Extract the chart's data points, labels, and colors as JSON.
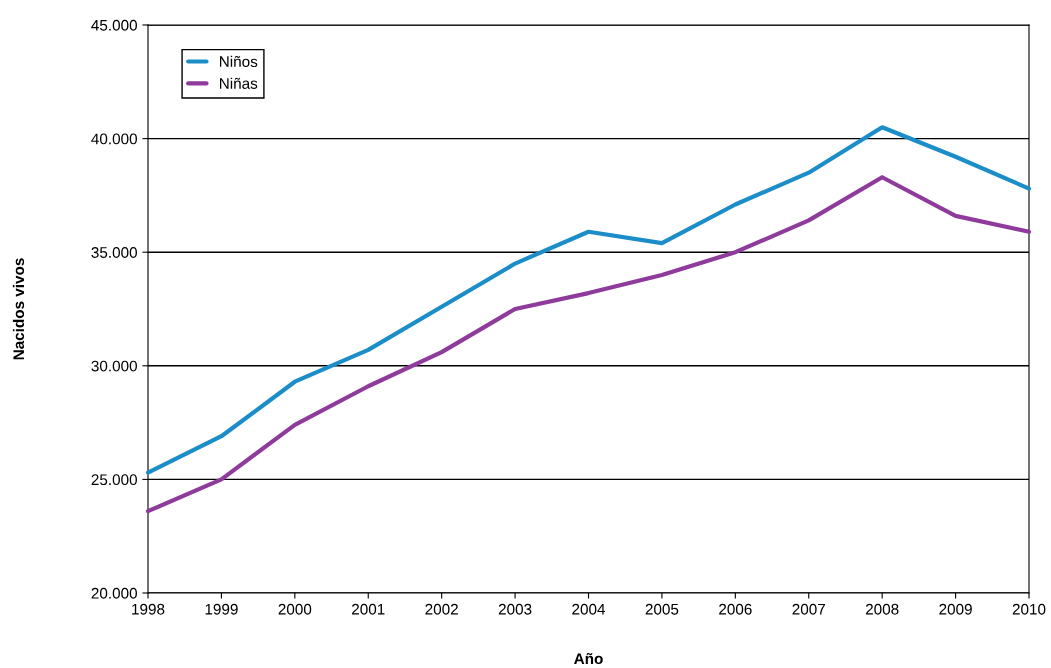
{
  "chart_data": {
    "type": "line",
    "xlabel": "Año",
    "ylabel": "Nacidos vivos",
    "x": [
      1998,
      1999,
      2000,
      2001,
      2002,
      2003,
      2004,
      2005,
      2006,
      2007,
      2008,
      2009,
      2010
    ],
    "series": [
      {
        "name": "Niños",
        "color": "#1b8dc8",
        "values": [
          25300,
          26900,
          29300,
          30700,
          32600,
          34500,
          35900,
          35400,
          37100,
          38500,
          40500,
          39200,
          37800
        ]
      },
      {
        "name": "Niñas",
        "color": "#8e3b9c",
        "values": [
          23600,
          25000,
          27400,
          29100,
          30600,
          32500,
          33200,
          34000,
          35000,
          36400,
          38300,
          36600,
          35900
        ]
      }
    ],
    "xlim": [
      1998,
      2010
    ],
    "xticks": [
      1998,
      1999,
      2000,
      2001,
      2002,
      2003,
      2004,
      2005,
      2006,
      2007,
      2008,
      2009,
      2010
    ],
    "ylim": [
      20000,
      45000
    ],
    "yticks": [
      {
        "value": 20000,
        "label": "20.000"
      },
      {
        "value": 25000,
        "label": "25.000"
      },
      {
        "value": 30000,
        "label": "30.000"
      },
      {
        "value": 35000,
        "label": "35.000"
      },
      {
        "value": 40000,
        "label": "40.000"
      },
      {
        "value": 45000,
        "label": "45.000"
      }
    ],
    "grid": "y",
    "legend": "top left",
    "marker": "none",
    "line_style": "solid"
  }
}
